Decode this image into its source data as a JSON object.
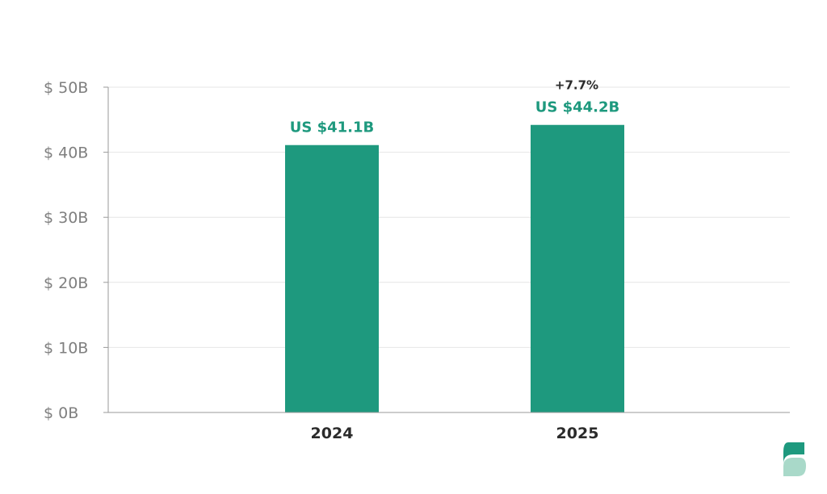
{
  "colors": {
    "bar": "#1e997e",
    "data_label": "#1e997e",
    "logo_top": "#1e997e",
    "logo_bottom": "#a9d9c9"
  },
  "logo": {
    "icon": "statista-s-logo-icon"
  },
  "chart_data": {
    "type": "bar",
    "categories": [
      "2024",
      "2025"
    ],
    "values": [
      41.1,
      44.2
    ],
    "unit": "B",
    "data_labels": [
      "US $41.1B",
      "US $44.2B"
    ],
    "annotations": [
      {
        "category": "2025",
        "text": "+7.7%"
      }
    ],
    "y_ticks": [
      0,
      10,
      20,
      30,
      40,
      50
    ],
    "y_tick_labels": [
      "$ 0B",
      "$ 10B",
      "$ 20B",
      "$ 30B",
      "$ 40B",
      "$ 50B"
    ],
    "ylim": [
      0,
      50
    ],
    "title": "",
    "xlabel": "",
    "ylabel": "",
    "grid": true,
    "legend": "none"
  }
}
